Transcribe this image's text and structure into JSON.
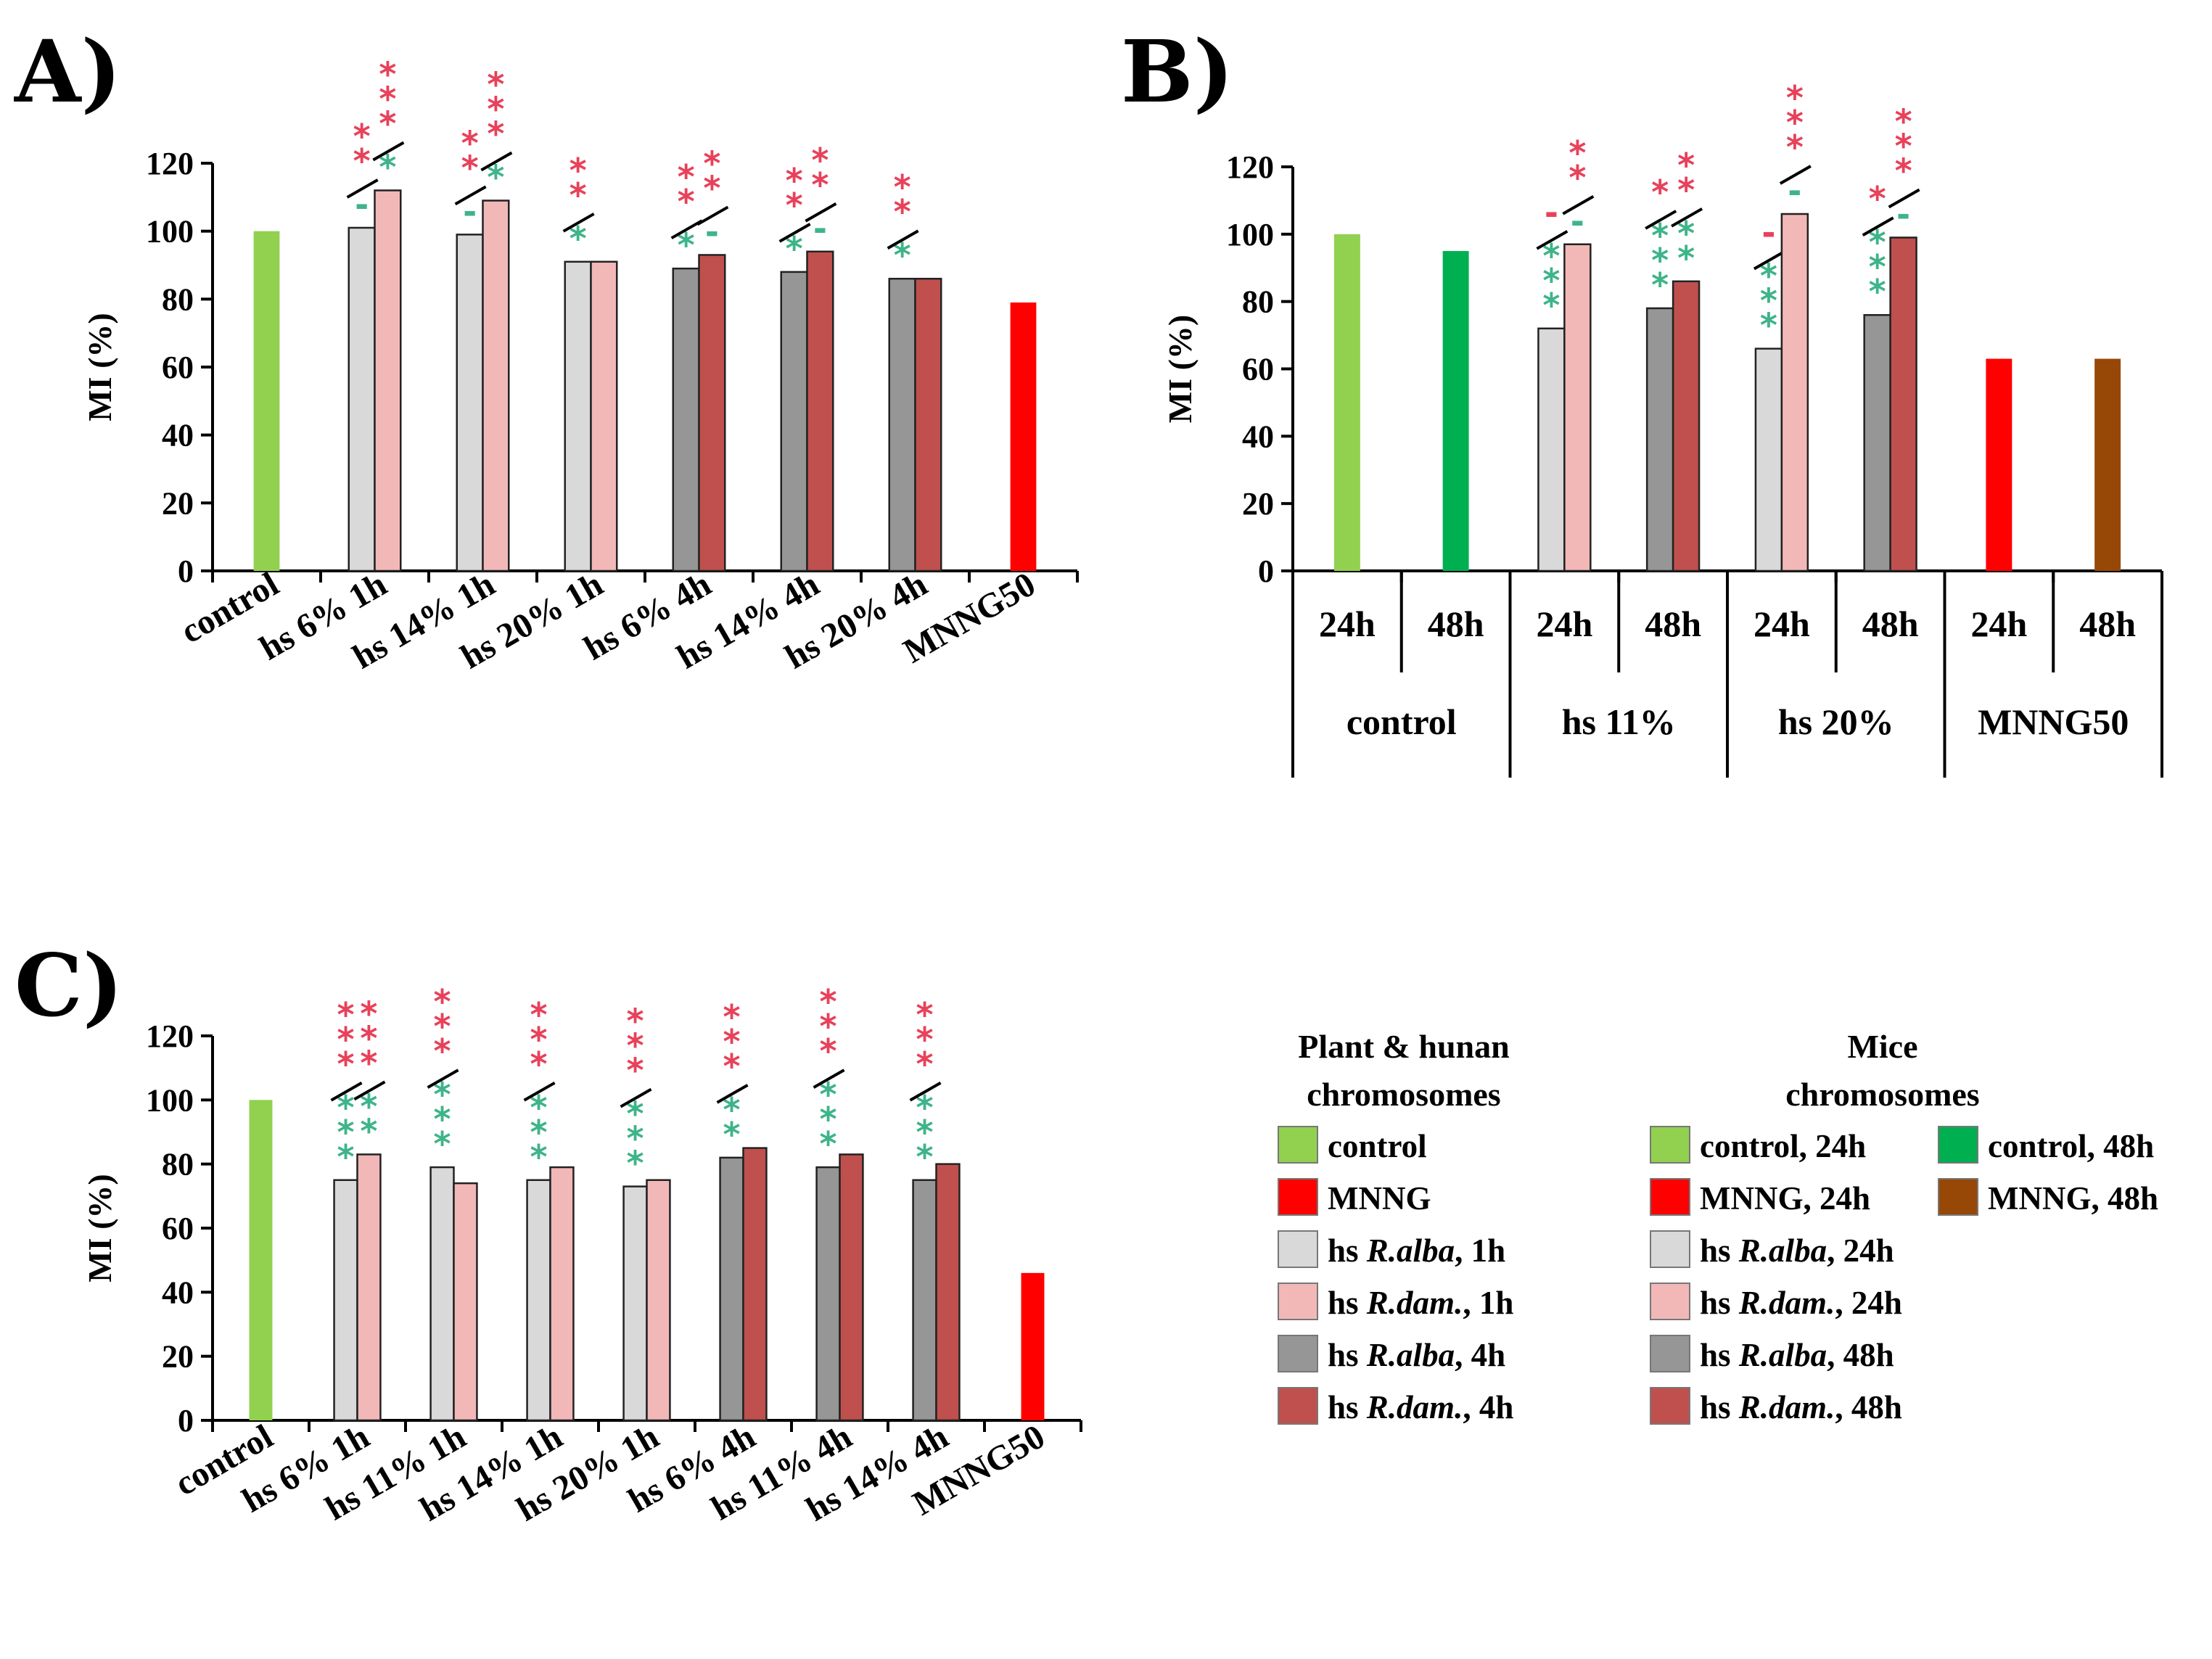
{
  "colors": {
    "control": "#92D050",
    "control48": "#00B050",
    "mnng": "#FF0000",
    "mnng48": "#974706",
    "ralba1h": "#D9D9D9",
    "rdam1h": "#F2B8B8",
    "ralba4h": "#969696",
    "rdam4h": "#C0504D",
    "star_red": "#E8415A",
    "star_green": "#3EB489",
    "axis": "#000000"
  },
  "chart_data": [
    {
      "id": "A",
      "label": "A)",
      "type": "bar",
      "ylabel": "MI (%)",
      "ylim": [
        0,
        120
      ],
      "yticks": [
        "0",
        "20",
        "40",
        "60",
        "80",
        "100",
        "120"
      ],
      "categories": [
        "control",
        "hs 6% 1h",
        "hs 14% 1h",
        "hs 20% 1h",
        "hs 6% 4h",
        "hs 14% 4h",
        "hs 20% 4h",
        "MNNG50"
      ],
      "bars": [
        [
          {
            "value": 100,
            "c": "control"
          }
        ],
        [
          {
            "value": 101,
            "c": "ralba1h",
            "sig_red": "**",
            "sig_green": "-"
          },
          {
            "value": 112,
            "c": "rdam1h",
            "sig_red": "***",
            "sig_green": "*"
          }
        ],
        [
          {
            "value": 99,
            "c": "ralba1h",
            "sig_red": "**",
            "sig_green": "-"
          },
          {
            "value": 109,
            "c": "rdam1h",
            "sig_red": "***",
            "sig_green": "*"
          }
        ],
        [
          {
            "value": 91,
            "c": "ralba1h",
            "sig_red": "**",
            "sig_green": "*"
          },
          {
            "value": 91,
            "c": "rdam1h"
          }
        ],
        [
          {
            "value": 89,
            "c": "ralba4h",
            "sig_red": "**",
            "sig_green": "*"
          },
          {
            "value": 93,
            "c": "rdam4h",
            "sig_red": "**",
            "sig_green": "-"
          }
        ],
        [
          {
            "value": 88,
            "c": "ralba4h",
            "sig_red": "**",
            "sig_green": "*"
          },
          {
            "value": 94,
            "c": "rdam4h",
            "sig_red": "**",
            "sig_green": "-"
          }
        ],
        [
          {
            "value": 86,
            "c": "ralba4h",
            "sig_red": "**",
            "sig_green": "*"
          },
          {
            "value": 86,
            "c": "rdam4h"
          }
        ],
        [
          {
            "value": 79,
            "c": "mnng"
          }
        ]
      ]
    },
    {
      "id": "B",
      "label": "B)",
      "type": "bar",
      "ylabel": "MI (%)",
      "ylim": [
        0,
        120
      ],
      "yticks": [
        "0",
        "20",
        "40",
        "60",
        "80",
        "100",
        "120"
      ],
      "subcategories": [
        "24h",
        "48h",
        "24h",
        "48h",
        "24h",
        "48h",
        "24h",
        "48h"
      ],
      "groups": [
        "control",
        "hs 11%",
        "hs  20%",
        "MNNG50"
      ],
      "bars": [
        [
          {
            "value": 100,
            "c": "control"
          }
        ],
        [
          {
            "value": 95,
            "c": "control48"
          }
        ],
        [
          {
            "value": 72,
            "c": "ralba1h",
            "sig_red": "-",
            "sig_green": "***"
          },
          {
            "value": 97,
            "c": "rdam1h",
            "sig_red": "**",
            "sig_green": "-"
          }
        ],
        [
          {
            "value": 78,
            "c": "ralba4h",
            "sig_red": "*",
            "sig_green": "***"
          },
          {
            "value": 86,
            "c": "rdam4h",
            "sig_red": "**",
            "sig_green": "**"
          }
        ],
        [
          {
            "value": 66,
            "c": "ralba1h",
            "sig_red": "-",
            "sig_green": "***"
          },
          {
            "value": 106,
            "c": "rdam1h",
            "sig_red": "***",
            "sig_green": "-"
          }
        ],
        [
          {
            "value": 76,
            "c": "ralba4h",
            "sig_red": "*",
            "sig_green": "***"
          },
          {
            "value": 99,
            "c": "rdam4h",
            "sig_red": "***",
            "sig_green": "-"
          }
        ],
        [
          {
            "value": 63,
            "c": "mnng"
          }
        ],
        [
          {
            "value": 63,
            "c": "mnng48"
          }
        ]
      ]
    },
    {
      "id": "C",
      "label": "C)",
      "type": "bar",
      "ylabel": "MI (%)",
      "ylim": [
        0,
        120
      ],
      "yticks": [
        "0",
        "20",
        "40",
        "60",
        "80",
        "100",
        "120"
      ],
      "categories": [
        "control",
        "hs 6% 1h",
        "hs 11% 1h",
        "hs 14% 1h",
        "hs 20% 1h",
        "hs 6% 4h",
        "hs 11% 4h",
        "hs 14% 4h",
        "MNNG50"
      ],
      "bars": [
        [
          {
            "value": 100,
            "c": "control"
          }
        ],
        [
          {
            "value": 75,
            "c": "ralba1h",
            "sig_red": "***",
            "sig_green": "***"
          },
          {
            "value": 83,
            "c": "rdam1h",
            "sig_red": "***",
            "sig_green": "**"
          }
        ],
        [
          {
            "value": 79,
            "c": "ralba1h",
            "sig_red": "***",
            "sig_green": "***"
          },
          {
            "value": 74,
            "c": "rdam1h"
          }
        ],
        [
          {
            "value": 75,
            "c": "ralba1h",
            "sig_red": "***",
            "sig_green": "***"
          },
          {
            "value": 79,
            "c": "rdam1h"
          }
        ],
        [
          {
            "value": 73,
            "c": "ralba1h",
            "sig_red": "***",
            "sig_green": "***"
          },
          {
            "value": 75,
            "c": "rdam1h"
          }
        ],
        [
          {
            "value": 82,
            "c": "ralba4h",
            "sig_red": "***",
            "sig_green": "**"
          },
          {
            "value": 85,
            "c": "rdam4h"
          }
        ],
        [
          {
            "value": 79,
            "c": "ralba4h",
            "sig_red": "***",
            "sig_green": "***"
          },
          {
            "value": 83,
            "c": "rdam4h"
          }
        ],
        [
          {
            "value": 75,
            "c": "ralba4h",
            "sig_red": "***",
            "sig_green": "***"
          },
          {
            "value": 80,
            "c": "rdam4h"
          }
        ],
        [
          {
            "value": 46,
            "c": "mnng"
          }
        ]
      ]
    }
  ],
  "legend": {
    "plant_header": [
      "Plant & hunan",
      "chromosomes"
    ],
    "mice_header": [
      "Mice",
      "chromosomes"
    ],
    "plant_items": [
      {
        "c": "control",
        "prefix": "control",
        "italic": "",
        "suffix": ""
      },
      {
        "c": "mnng",
        "prefix": "MNNG",
        "italic": "",
        "suffix": ""
      },
      {
        "c": "ralba1h",
        "prefix": "hs ",
        "italic": "R.alba",
        "suffix": ", 1h"
      },
      {
        "c": "rdam1h",
        "prefix": "hs ",
        "italic": "R.dam.",
        "suffix": ", 1h"
      },
      {
        "c": "ralba4h",
        "prefix": "hs ",
        "italic": "R.alba",
        "suffix": ", 4h"
      },
      {
        "c": "rdam4h",
        "prefix": "hs ",
        "italic": "R.dam.",
        "suffix": ", 4h"
      }
    ],
    "mice_items": [
      {
        "c": "control",
        "prefix": "control, 24h",
        "italic": "",
        "suffix": ""
      },
      {
        "c": "mnng",
        "prefix": "MNNG, 24h",
        "italic": "",
        "suffix": ""
      },
      {
        "c": "ralba1h",
        "prefix": "hs ",
        "italic": "R.alba",
        "suffix": ", 24h"
      },
      {
        "c": "rdam1h",
        "prefix": "hs ",
        "italic": "R.dam.",
        "suffix": ", 24h"
      },
      {
        "c": "ralba4h",
        "prefix": "hs ",
        "italic": "R.alba",
        "suffix": ", 48h"
      },
      {
        "c": "rdam4h",
        "prefix": "hs ",
        "italic": "R.dam.",
        "suffix": ", 48h"
      }
    ],
    "mice_extra": [
      {
        "c": "control48",
        "prefix": "control, 48h",
        "italic": "",
        "suffix": ""
      },
      {
        "c": "mnng48",
        "prefix": "MNNG, 48h",
        "italic": "",
        "suffix": ""
      }
    ]
  }
}
